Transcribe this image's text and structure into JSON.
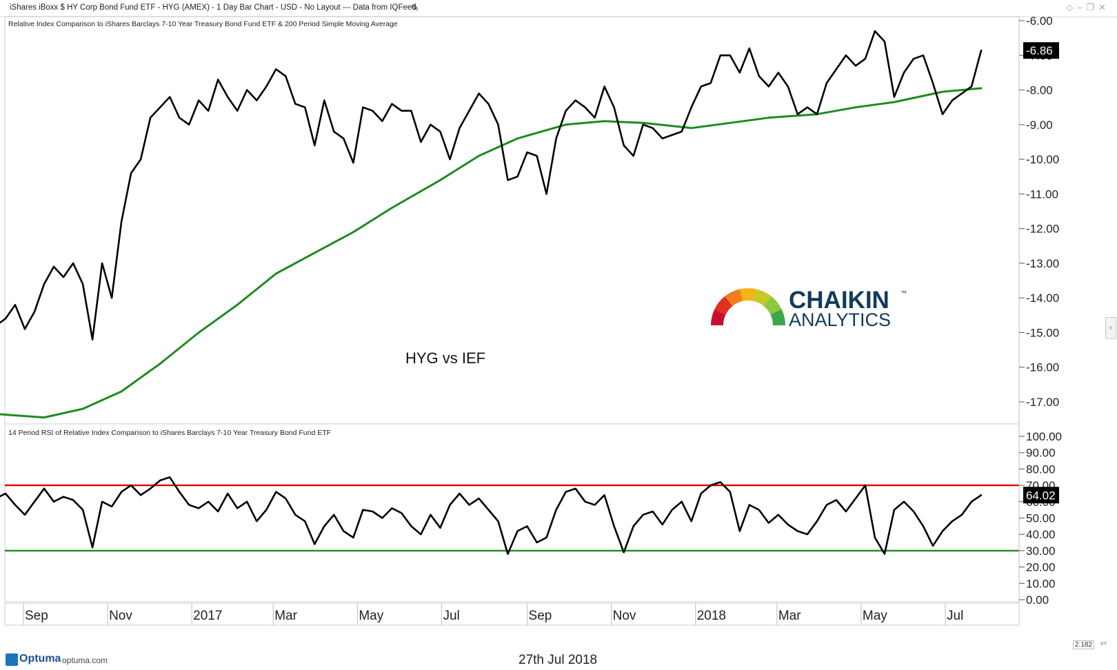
{
  "window": {
    "title": "iShares iBoxx $ HY Corp Bond Fund ETF - HYG (AMEX) - 1 Day Bar Chart - USD - No Layout --- Data from IQFeed",
    "edit_icon": "pencil-icon",
    "controls_icons": [
      "diamond-icon",
      "minimize-icon",
      "restore-icon",
      "close-icon"
    ]
  },
  "footer": {
    "brand": "Optuma",
    "url": "optuma.com",
    "date": "27th Jul 2018",
    "scale_value": "2.182",
    "scale_unit": "XY"
  },
  "colors": {
    "price_line": "#000000",
    "moving_average": "#1f8a1f",
    "overbought_line": "#e00000",
    "oversold_line": "#1f8a1f",
    "label_bg": "#000000",
    "label_fg": "#ffffff"
  },
  "chart_data": [
    {
      "type": "line",
      "title": "Relative Index Comparison to iShares Barclays 7-10 Year Treasury Bond Fund ETF & 200 Period Simple Moving Average",
      "annotation": "HYG vs IEF",
      "watermark": {
        "line1": "CHAIKIN",
        "line2": "ANALYTICS",
        "tm": "™"
      },
      "xlabel": "",
      "ylabel": "",
      "x_tick_labels": [
        "Sep",
        "Nov",
        "2017",
        "Mar",
        "May",
        "Jul",
        "Sep",
        "Nov",
        "2018",
        "Mar",
        "May",
        "Jul"
      ],
      "y_tick_labels": [
        "-6.00",
        "-7.00",
        "-8.00",
        "-9.00",
        "-10.00",
        "-11.00",
        "-12.00",
        "-13.00",
        "-14.00",
        "-15.00",
        "-16.00",
        "-17.00"
      ],
      "ylim": [
        -17.4,
        -5.7
      ],
      "last_value_label": "-6.86",
      "legend": "none",
      "grid": false,
      "series": [
        {
          "key": "ratio",
          "x": [
            "2016-08-12",
            "2016-08-19",
            "2016-08-26",
            "2016-09-02",
            "2016-09-09",
            "2016-09-16",
            "2016-09-23",
            "2016-09-30",
            "2016-10-07",
            "2016-10-14",
            "2016-10-21",
            "2016-10-28",
            "2016-11-04",
            "2016-11-11",
            "2016-11-18",
            "2016-11-25",
            "2016-12-02",
            "2016-12-09",
            "2016-12-16",
            "2016-12-23",
            "2016-12-30",
            "2017-01-06",
            "2017-01-13",
            "2017-01-20",
            "2017-01-27",
            "2017-02-03",
            "2017-02-10",
            "2017-02-17",
            "2017-02-24",
            "2017-03-03",
            "2017-03-10",
            "2017-03-17",
            "2017-03-24",
            "2017-03-31",
            "2017-04-07",
            "2017-04-14",
            "2017-04-21",
            "2017-04-28",
            "2017-05-05",
            "2017-05-12",
            "2017-05-19",
            "2017-05-26",
            "2017-06-02",
            "2017-06-09",
            "2017-06-16",
            "2017-06-23",
            "2017-06-30",
            "2017-07-07",
            "2017-07-14",
            "2017-07-21",
            "2017-07-28",
            "2017-08-04",
            "2017-08-11",
            "2017-08-18",
            "2017-08-25",
            "2017-09-01",
            "2017-09-08",
            "2017-09-15",
            "2017-09-22",
            "2017-09-29",
            "2017-10-06",
            "2017-10-13",
            "2017-10-20",
            "2017-10-27",
            "2017-11-03",
            "2017-11-10",
            "2017-11-17",
            "2017-11-24",
            "2017-12-01",
            "2017-12-08",
            "2017-12-15",
            "2017-12-22",
            "2017-12-29",
            "2018-01-05",
            "2018-01-12",
            "2018-01-19",
            "2018-01-26",
            "2018-02-02",
            "2018-02-09",
            "2018-02-16",
            "2018-02-23",
            "2018-03-02",
            "2018-03-09",
            "2018-03-16",
            "2018-03-23",
            "2018-03-30",
            "2018-04-06",
            "2018-04-13",
            "2018-04-20",
            "2018-04-27",
            "2018-05-04",
            "2018-05-11",
            "2018-05-18",
            "2018-05-25",
            "2018-06-01",
            "2018-06-08",
            "2018-06-15",
            "2018-06-22",
            "2018-06-29",
            "2018-07-06",
            "2018-07-13",
            "2018-07-20",
            "2018-07-27"
          ],
          "values": [
            -14.8,
            -14.6,
            -14.2,
            -14.9,
            -14.4,
            -13.6,
            -13.1,
            -13.4,
            -13.0,
            -13.6,
            -15.2,
            -13.0,
            -14.0,
            -11.8,
            -10.4,
            -10.0,
            -8.8,
            -8.5,
            -8.2,
            -8.8,
            -9.0,
            -8.3,
            -8.6,
            -7.7,
            -8.2,
            -8.6,
            -8.0,
            -8.3,
            -7.9,
            -7.4,
            -7.6,
            -8.4,
            -8.5,
            -9.6,
            -8.3,
            -9.2,
            -9.4,
            -10.1,
            -8.5,
            -8.6,
            -8.9,
            -8.4,
            -8.6,
            -8.6,
            -9.5,
            -9.0,
            -9.2,
            -10.0,
            -9.1,
            -8.6,
            -8.1,
            -8.4,
            -9.0,
            -10.6,
            -10.5,
            -9.8,
            -9.9,
            -11.0,
            -9.4,
            -8.6,
            -8.3,
            -8.5,
            -8.8,
            -7.9,
            -8.5,
            -9.6,
            -9.9,
            -9.0,
            -9.1,
            -9.4,
            -9.3,
            -9.2,
            -8.5,
            -7.9,
            -7.8,
            -7.0,
            -7.0,
            -7.5,
            -6.8,
            -7.6,
            -7.9,
            -7.5,
            -7.9,
            -8.7,
            -8.5,
            -8.7,
            -7.8,
            -7.4,
            -7.0,
            -7.3,
            -7.1,
            -6.3,
            -6.6,
            -8.2,
            -7.5,
            -7.1,
            -7.0,
            -7.8,
            -8.7,
            -8.3,
            -8.1,
            -7.9,
            -6.86
          ]
        },
        {
          "key": "sma200",
          "x": [
            "2016-08-12",
            "2016-09-16",
            "2016-10-14",
            "2016-11-11",
            "2016-12-09",
            "2017-01-06",
            "2017-02-03",
            "2017-03-03",
            "2017-03-31",
            "2017-04-28",
            "2017-05-26",
            "2017-06-30",
            "2017-07-28",
            "2017-08-25",
            "2017-09-29",
            "2017-10-27",
            "2017-11-24",
            "2017-12-29",
            "2018-01-26",
            "2018-02-23",
            "2018-03-30",
            "2018-04-27",
            "2018-05-25",
            "2018-06-29",
            "2018-07-27"
          ],
          "values": [
            -17.35,
            -17.45,
            -17.2,
            -16.7,
            -15.9,
            -15.0,
            -14.2,
            -13.3,
            -12.7,
            -12.1,
            -11.4,
            -10.6,
            -9.9,
            -9.4,
            -9.0,
            -8.9,
            -8.95,
            -9.1,
            -8.95,
            -8.8,
            -8.7,
            -8.5,
            -8.35,
            -8.05,
            -7.95
          ]
        }
      ]
    },
    {
      "type": "line",
      "title": "14 Period RSI of Relative Index Comparison to iShares Barclays 7-10 Year Treasury Bond Fund ETF",
      "xlabel": "",
      "ylabel": "",
      "y_tick_labels": [
        "100.00",
        "90.00",
        "80.00",
        "70.00",
        "60.00",
        "50.00",
        "40.00",
        "30.00",
        "20.00",
        "10.00",
        "0.00"
      ],
      "ylim": [
        0,
        104
      ],
      "last_value_label": "64.02",
      "reference_lines": [
        70,
        30
      ],
      "legend": "none",
      "grid": false,
      "series": [
        {
          "key": "rsi",
          "x": [
            "2016-08-12",
            "2016-08-19",
            "2016-08-26",
            "2016-09-02",
            "2016-09-09",
            "2016-09-16",
            "2016-09-23",
            "2016-09-30",
            "2016-10-07",
            "2016-10-14",
            "2016-10-21",
            "2016-10-28",
            "2016-11-04",
            "2016-11-11",
            "2016-11-18",
            "2016-11-25",
            "2016-12-02",
            "2016-12-09",
            "2016-12-16",
            "2016-12-23",
            "2016-12-30",
            "2017-01-06",
            "2017-01-13",
            "2017-01-20",
            "2017-01-27",
            "2017-02-03",
            "2017-02-10",
            "2017-02-17",
            "2017-02-24",
            "2017-03-03",
            "2017-03-10",
            "2017-03-17",
            "2017-03-24",
            "2017-03-31",
            "2017-04-07",
            "2017-04-14",
            "2017-04-21",
            "2017-04-28",
            "2017-05-05",
            "2017-05-12",
            "2017-05-19",
            "2017-05-26",
            "2017-06-02",
            "2017-06-09",
            "2017-06-16",
            "2017-06-23",
            "2017-06-30",
            "2017-07-07",
            "2017-07-14",
            "2017-07-21",
            "2017-07-28",
            "2017-08-04",
            "2017-08-11",
            "2017-08-18",
            "2017-08-25",
            "2017-09-01",
            "2017-09-08",
            "2017-09-15",
            "2017-09-22",
            "2017-09-29",
            "2017-10-06",
            "2017-10-13",
            "2017-10-20",
            "2017-10-27",
            "2017-11-03",
            "2017-11-10",
            "2017-11-17",
            "2017-11-24",
            "2017-12-01",
            "2017-12-08",
            "2017-12-15",
            "2017-12-22",
            "2017-12-29",
            "2018-01-05",
            "2018-01-12",
            "2018-01-19",
            "2018-01-26",
            "2018-02-02",
            "2018-02-09",
            "2018-02-16",
            "2018-02-23",
            "2018-03-02",
            "2018-03-09",
            "2018-03-16",
            "2018-03-23",
            "2018-03-30",
            "2018-04-06",
            "2018-04-13",
            "2018-04-20",
            "2018-04-27",
            "2018-05-04",
            "2018-05-11",
            "2018-05-18",
            "2018-05-25",
            "2018-06-01",
            "2018-06-08",
            "2018-06-15",
            "2018-06-22",
            "2018-06-29",
            "2018-07-06",
            "2018-07-13",
            "2018-07-20",
            "2018-07-27"
          ],
          "values": [
            62,
            65,
            58,
            52,
            60,
            68,
            60,
            63,
            61,
            55,
            32,
            60,
            57,
            66,
            70,
            64,
            68,
            73,
            75,
            66,
            58,
            56,
            60,
            54,
            65,
            56,
            60,
            48,
            55,
            66,
            62,
            52,
            48,
            34,
            45,
            52,
            42,
            38,
            55,
            54,
            50,
            56,
            53,
            45,
            40,
            52,
            44,
            58,
            65,
            58,
            62,
            55,
            48,
            28,
            42,
            45,
            35,
            38,
            55,
            66,
            68,
            60,
            58,
            64,
            45,
            29,
            45,
            52,
            54,
            46,
            55,
            60,
            48,
            65,
            70,
            72,
            66,
            42,
            58,
            55,
            47,
            52,
            46,
            42,
            40,
            48,
            58,
            61,
            54,
            62,
            70,
            38,
            28,
            55,
            60,
            54,
            45,
            33,
            42,
            48,
            52,
            60,
            64.02
          ]
        }
      ]
    }
  ]
}
